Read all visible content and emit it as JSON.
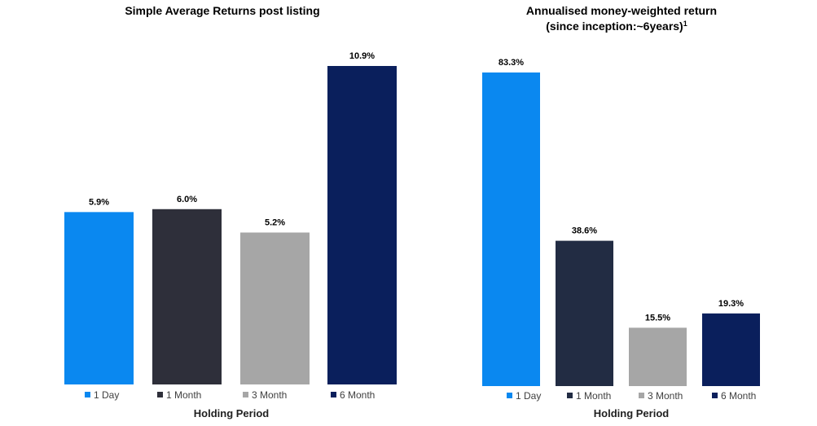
{
  "chart_data": [
    {
      "type": "bar",
      "title": "Simple Average Returns post listing",
      "xlabel": "Holding Period",
      "ylabel": "",
      "categories": [
        "1 Day",
        "1 Month",
        "3 Month",
        "6 Month"
      ],
      "values": [
        5.9,
        6.0,
        5.2,
        10.9
      ],
      "value_labels": [
        "5.9%",
        "6.0%",
        "5.2%",
        "10.9%"
      ],
      "colors": [
        "#0a88f0",
        "#2e2f3a",
        "#a6a6a6",
        "#0a1f5c"
      ],
      "ylim": [
        0,
        11
      ],
      "grid": false,
      "legend": "bottom"
    },
    {
      "type": "bar",
      "title": "Annualised money-weighted return",
      "subtitle": "(since inception:~6years)",
      "subtitle_superscript": "1",
      "xlabel": "Holding Period",
      "ylabel": "",
      "categories": [
        "1 Day",
        "1 Month",
        "3 Month",
        "6 Month"
      ],
      "values": [
        83.3,
        38.6,
        15.5,
        19.3
      ],
      "value_labels": [
        "83.3%",
        "38.6%",
        "15.5%",
        "19.3%"
      ],
      "colors": [
        "#0a88f0",
        "#222c43",
        "#a6a6a6",
        "#0a1f5c"
      ],
      "ylim": [
        0,
        85
      ],
      "grid": false,
      "legend": "bottom"
    }
  ]
}
